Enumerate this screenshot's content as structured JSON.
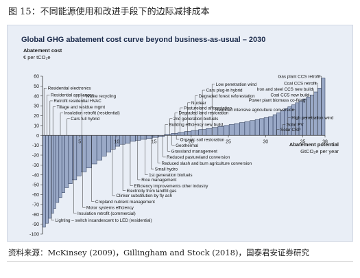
{
  "figure_caption": "图 15：不同能源使用和改进手段下的边际减排成本",
  "source_note": "资料来源：McKinsey (2009)，Gillingham and Stock (2018)，国泰君安证券研究",
  "chart_data": {
    "type": "bar",
    "title": "Global GHG abatement cost curve beyond business-as-usual – 2030",
    "ylabel": "Abatement cost",
    "ylabel_unit": "€ per tCO₂e",
    "xlabel": "Abatement potential",
    "xlabel_unit": "GtCO₂e per year",
    "ylim": [
      -100,
      60
    ],
    "xlim": [
      0,
      38
    ],
    "yticks": [
      60,
      50,
      40,
      30,
      20,
      10,
      0,
      -10,
      -20,
      -30,
      -40,
      -50,
      -60,
      -70,
      -80,
      -90,
      -100
    ],
    "xticks": [
      5,
      10,
      15,
      20,
      25,
      30,
      35,
      38
    ],
    "colors": {
      "bar_fill": "#9aa9c7",
      "bar_stroke": "#1f2d4d",
      "background": "#e9eef6",
      "title": "#1b2a4a"
    },
    "bars": [
      {
        "x0": 0.0,
        "x1": 0.4,
        "cost": -93
      },
      {
        "x0": 0.4,
        "x1": 0.8,
        "cost": -89
      },
      {
        "x0": 0.8,
        "x1": 1.2,
        "cost": -84
      },
      {
        "x0": 1.2,
        "x1": 1.5,
        "cost": -79
      },
      {
        "x0": 1.5,
        "x1": 1.8,
        "cost": -74
      },
      {
        "x0": 1.8,
        "x1": 2.2,
        "cost": -68
      },
      {
        "x0": 2.2,
        "x1": 2.6,
        "cost": -63
      },
      {
        "x0": 2.6,
        "x1": 3.0,
        "cost": -58
      },
      {
        "x0": 3.0,
        "x1": 3.5,
        "cost": -53
      },
      {
        "x0": 3.5,
        "x1": 4.0,
        "cost": -49
      },
      {
        "x0": 4.0,
        "x1": 4.6,
        "cost": -45
      },
      {
        "x0": 4.6,
        "x1": 5.2,
        "cost": -41
      },
      {
        "x0": 5.2,
        "x1": 5.9,
        "cost": -37
      },
      {
        "x0": 5.9,
        "x1": 6.6,
        "cost": -33
      },
      {
        "x0": 6.6,
        "x1": 7.3,
        "cost": -29
      },
      {
        "x0": 7.3,
        "x1": 8.0,
        "cost": -25
      },
      {
        "x0": 8.0,
        "x1": 8.6,
        "cost": -21
      },
      {
        "x0": 8.6,
        "x1": 9.2,
        "cost": -17
      },
      {
        "x0": 9.2,
        "x1": 9.8,
        "cost": -14
      },
      {
        "x0": 9.8,
        "x1": 10.4,
        "cost": -11
      },
      {
        "x0": 10.4,
        "x1": 11.1,
        "cost": -9
      },
      {
        "x0": 11.1,
        "x1": 11.8,
        "cost": -8
      },
      {
        "x0": 11.8,
        "x1": 12.5,
        "cost": -6
      },
      {
        "x0": 12.5,
        "x1": 13.2,
        "cost": -5
      },
      {
        "x0": 13.2,
        "x1": 14.0,
        "cost": -4
      },
      {
        "x0": 14.0,
        "x1": 14.8,
        "cost": -3
      },
      {
        "x0": 14.8,
        "x1": 15.6,
        "cost": -2
      },
      {
        "x0": 15.6,
        "x1": 16.4,
        "cost": -1
      },
      {
        "x0": 16.4,
        "x1": 17.3,
        "cost": 1
      },
      {
        "x0": 17.3,
        "x1": 18.2,
        "cost": 2
      },
      {
        "x0": 18.2,
        "x1": 19.1,
        "cost": 3
      },
      {
        "x0": 19.1,
        "x1": 20.0,
        "cost": 4
      },
      {
        "x0": 20.0,
        "x1": 21.0,
        "cost": 5
      },
      {
        "x0": 21.0,
        "x1": 22.0,
        "cost": 6
      },
      {
        "x0": 22.0,
        "x1": 22.8,
        "cost": 7
      },
      {
        "x0": 22.8,
        "x1": 23.6,
        "cost": 8
      },
      {
        "x0": 23.6,
        "x1": 24.4,
        "cost": 9
      },
      {
        "x0": 24.4,
        "x1": 25.1,
        "cost": 10
      },
      {
        "x0": 25.1,
        "x1": 25.8,
        "cost": 11
      },
      {
        "x0": 25.8,
        "x1": 26.5,
        "cost": 12
      },
      {
        "x0": 26.5,
        "x1": 27.2,
        "cost": 13
      },
      {
        "x0": 27.2,
        "x1": 27.9,
        "cost": 14
      },
      {
        "x0": 27.9,
        "x1": 28.6,
        "cost": 15
      },
      {
        "x0": 28.6,
        "x1": 29.2,
        "cost": 16
      },
      {
        "x0": 29.2,
        "x1": 29.8,
        "cost": 17
      },
      {
        "x0": 29.8,
        "x1": 30.4,
        "cost": 18
      },
      {
        "x0": 30.4,
        "x1": 31.0,
        "cost": 19
      },
      {
        "x0": 31.0,
        "x1": 31.5,
        "cost": 21
      },
      {
        "x0": 31.5,
        "x1": 32.0,
        "cost": 23
      },
      {
        "x0": 32.0,
        "x1": 32.5,
        "cost": 25
      },
      {
        "x0": 32.5,
        "x1": 33.0,
        "cost": 27
      },
      {
        "x0": 33.0,
        "x1": 33.5,
        "cost": 29
      },
      {
        "x0": 33.5,
        "x1": 34.0,
        "cost": 31
      },
      {
        "x0": 34.0,
        "x1": 34.5,
        "cost": 33
      },
      {
        "x0": 34.5,
        "x1": 35.0,
        "cost": 35
      },
      {
        "x0": 35.0,
        "x1": 35.5,
        "cost": 37
      },
      {
        "x0": 35.5,
        "x1": 36.0,
        "cost": 39
      },
      {
        "x0": 36.0,
        "x1": 36.5,
        "cost": 41
      },
      {
        "x0": 36.5,
        "x1": 37.0,
        "cost": 44
      },
      {
        "x0": 37.0,
        "x1": 37.5,
        "cost": 48
      },
      {
        "x0": 37.5,
        "x1": 38.0,
        "cost": 58
      }
    ],
    "annotations_upper": [
      {
        "label": "Residential electronics",
        "x": 0.2,
        "cost": 48
      },
      {
        "label": "Residential appliances",
        "x": 0.6,
        "cost": 41
      },
      {
        "label": "Retrofit residential HVAC",
        "x": 1.0,
        "cost": 35
      },
      {
        "label": "Tillage and residue mgmt",
        "x": 1.4,
        "cost": 29
      },
      {
        "label": "Insulation retrofit (residential)",
        "x": 2.4,
        "cost": 23
      },
      {
        "label": "Cars full hybrid",
        "x": 3.3,
        "cost": 17
      },
      {
        "label": "Waste recycling",
        "x": 5.3,
        "cost": 40
      },
      {
        "label": "Low penetration wind",
        "x": 22.8,
        "cost": 52
      },
      {
        "label": "Cars plug-in hybrid",
        "x": 21.5,
        "cost": 46
      },
      {
        "label": "Degraded forest reforestation",
        "x": 20.5,
        "cost": 40
      },
      {
        "label": "Nuclear",
        "x": 19.5,
        "cost": 33
      },
      {
        "label": "Pastureland afforestation",
        "x": 18.5,
        "cost": 28
      },
      {
        "label": "Degraded land restoration",
        "x": 17.8,
        "cost": 23
      },
      {
        "label": "2nd generation biofuels",
        "x": 17.1,
        "cost": 17
      },
      {
        "label": "Building efficiency new build",
        "x": 16.5,
        "cost": 11
      },
      {
        "label": "Gas plant CCS retrofit",
        "x": 37.5,
        "cost": 60
      },
      {
        "label": "Coal CCS retrofit",
        "x": 37.0,
        "cost": 53
      },
      {
        "label": "Iron and steel CCS new build",
        "x": 36.5,
        "cost": 47
      },
      {
        "label": "Coal CCS new build",
        "x": 36.0,
        "cost": 41
      },
      {
        "label": "Power plant biomass co-firing",
        "x": 35.5,
        "cost": 36
      },
      {
        "label": "Reduced intensive agriculture conversion",
        "x": 34.0,
        "cost": 26
      },
      {
        "label": "High penetration wind",
        "x": 33.0,
        "cost": 18
      },
      {
        "label": "Solar PV",
        "x": 32.3,
        "cost": 11
      },
      {
        "label": "Solar CSP",
        "x": 31.5,
        "cost": 6
      }
    ],
    "annotations_lower": [
      {
        "label": "Organic soil restoration",
        "x": 18.0,
        "cost": -4
      },
      {
        "label": "Geothermal",
        "x": 17.4,
        "cost": -10
      },
      {
        "label": "Grassland management",
        "x": 16.8,
        "cost": -16
      },
      {
        "label": "Reduced pastureland conversion",
        "x": 16.2,
        "cost": -22
      },
      {
        "label": "Reduced slash and burn agriculture conversion",
        "x": 15.5,
        "cost": -28
      },
      {
        "label": "Small hydro",
        "x": 14.6,
        "cost": -34
      },
      {
        "label": "1st generation biofuels",
        "x": 13.8,
        "cost": -40
      },
      {
        "label": "Rice management",
        "x": 12.8,
        "cost": -45
      },
      {
        "label": "Efficiency improvements other industry",
        "x": 11.8,
        "cost": -51
      },
      {
        "label": "Electricity from landfill gas",
        "x": 10.8,
        "cost": -56
      },
      {
        "label": "Clinker substitution by fly ash",
        "x": 9.4,
        "cost": -61
      },
      {
        "label": "Cropland nutrient management",
        "x": 6.6,
        "cost": -67
      },
      {
        "label": "Motor systems efficiency",
        "x": 5.4,
        "cost": -73
      },
      {
        "label": "Insulation retrofit (commercial)",
        "x": 4.2,
        "cost": -79
      },
      {
        "label": "Lighting – switch incandescent to LED (residential)",
        "x": 1.2,
        "cost": -86
      }
    ]
  }
}
